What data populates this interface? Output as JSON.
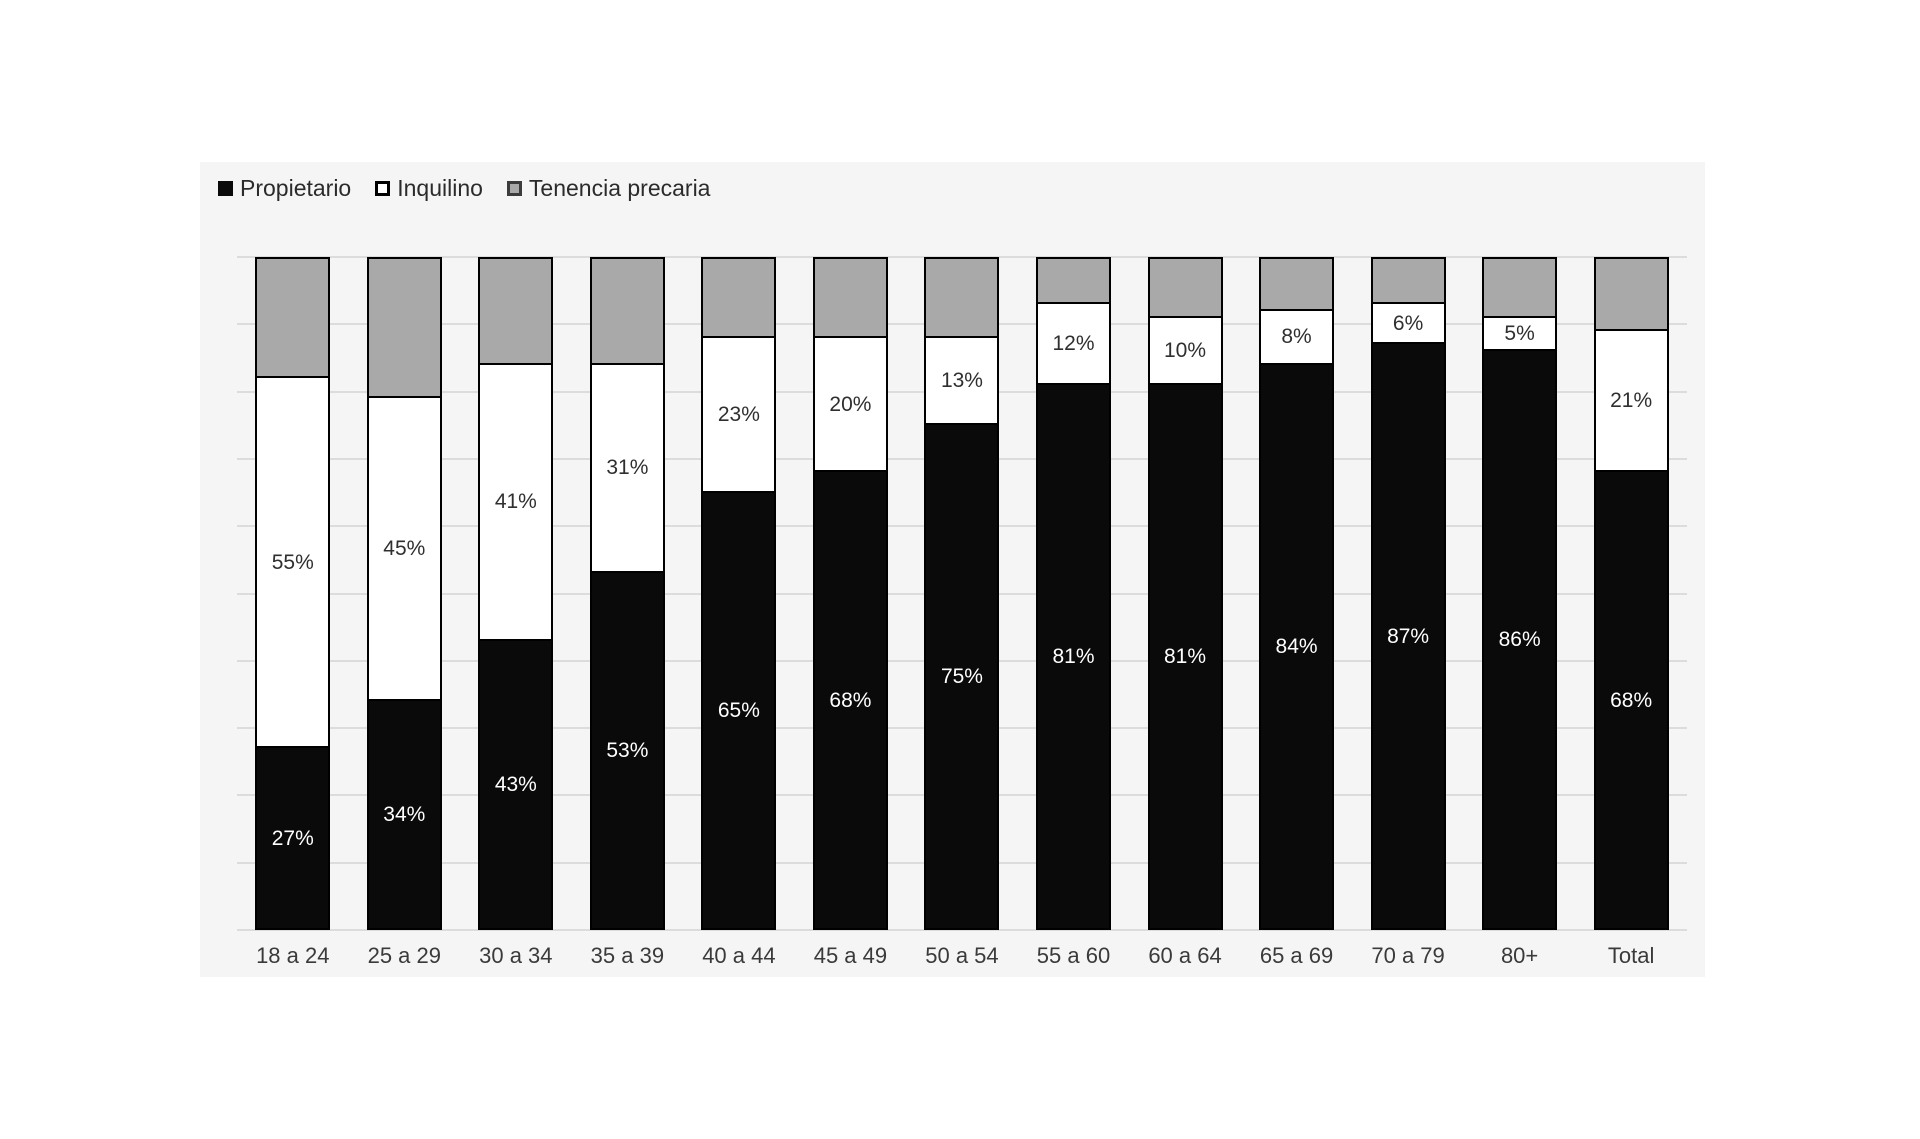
{
  "page": {
    "background": "#ffffff"
  },
  "panel": {
    "background": "#f5f5f5"
  },
  "legend": {
    "position": "top-left",
    "items": [
      {
        "label": "Propietario",
        "swatch_fill": "#0a0a0a",
        "swatch_border": "#000000"
      },
      {
        "label": "Inquilino",
        "swatch_fill": "#ffffff",
        "swatch_border": "#000000"
      },
      {
        "label": "Tenencia precaria",
        "swatch_fill": "#a9a9a9",
        "swatch_border": "#3c3c3c"
      }
    ]
  },
  "chart_data": {
    "type": "bar",
    "variant": "stacked-100-percent",
    "orientation": "vertical",
    "title": "",
    "xlabel": "",
    "ylabel": "",
    "ylim": [
      0,
      100
    ],
    "value_suffix": "%",
    "gridlines": {
      "show": true,
      "step": 10,
      "color": "#dcdcdc"
    },
    "legend_position": "top-left",
    "categories": [
      "18 a 24",
      "25 a 29",
      "30 a 34",
      "35 a 39",
      "40 a 44",
      "45 a 49",
      "50 a 54",
      "55 a 60",
      "60 a 64",
      "65 a 69",
      "70 a 79",
      "80+",
      "Total"
    ],
    "series": [
      {
        "name": "Propietario",
        "color": "#0a0a0a",
        "label_color": "#ffffff",
        "show_labels": true,
        "values": [
          27,
          34,
          43,
          53,
          65,
          68,
          75,
          81,
          81,
          84,
          87,
          86,
          68
        ]
      },
      {
        "name": "Inquilino",
        "color": "#ffffff",
        "label_color": "#2f2f2f",
        "show_labels": true,
        "values": [
          55,
          45,
          41,
          31,
          23,
          20,
          13,
          12,
          10,
          8,
          6,
          5,
          21
        ]
      },
      {
        "name": "Tenencia precaria",
        "color": "#a9a9a9",
        "label_color": null,
        "show_labels": false,
        "values": [
          18,
          21,
          16,
          16,
          12,
          12,
          12,
          7,
          9,
          8,
          7,
          9,
          11
        ]
      }
    ]
  }
}
